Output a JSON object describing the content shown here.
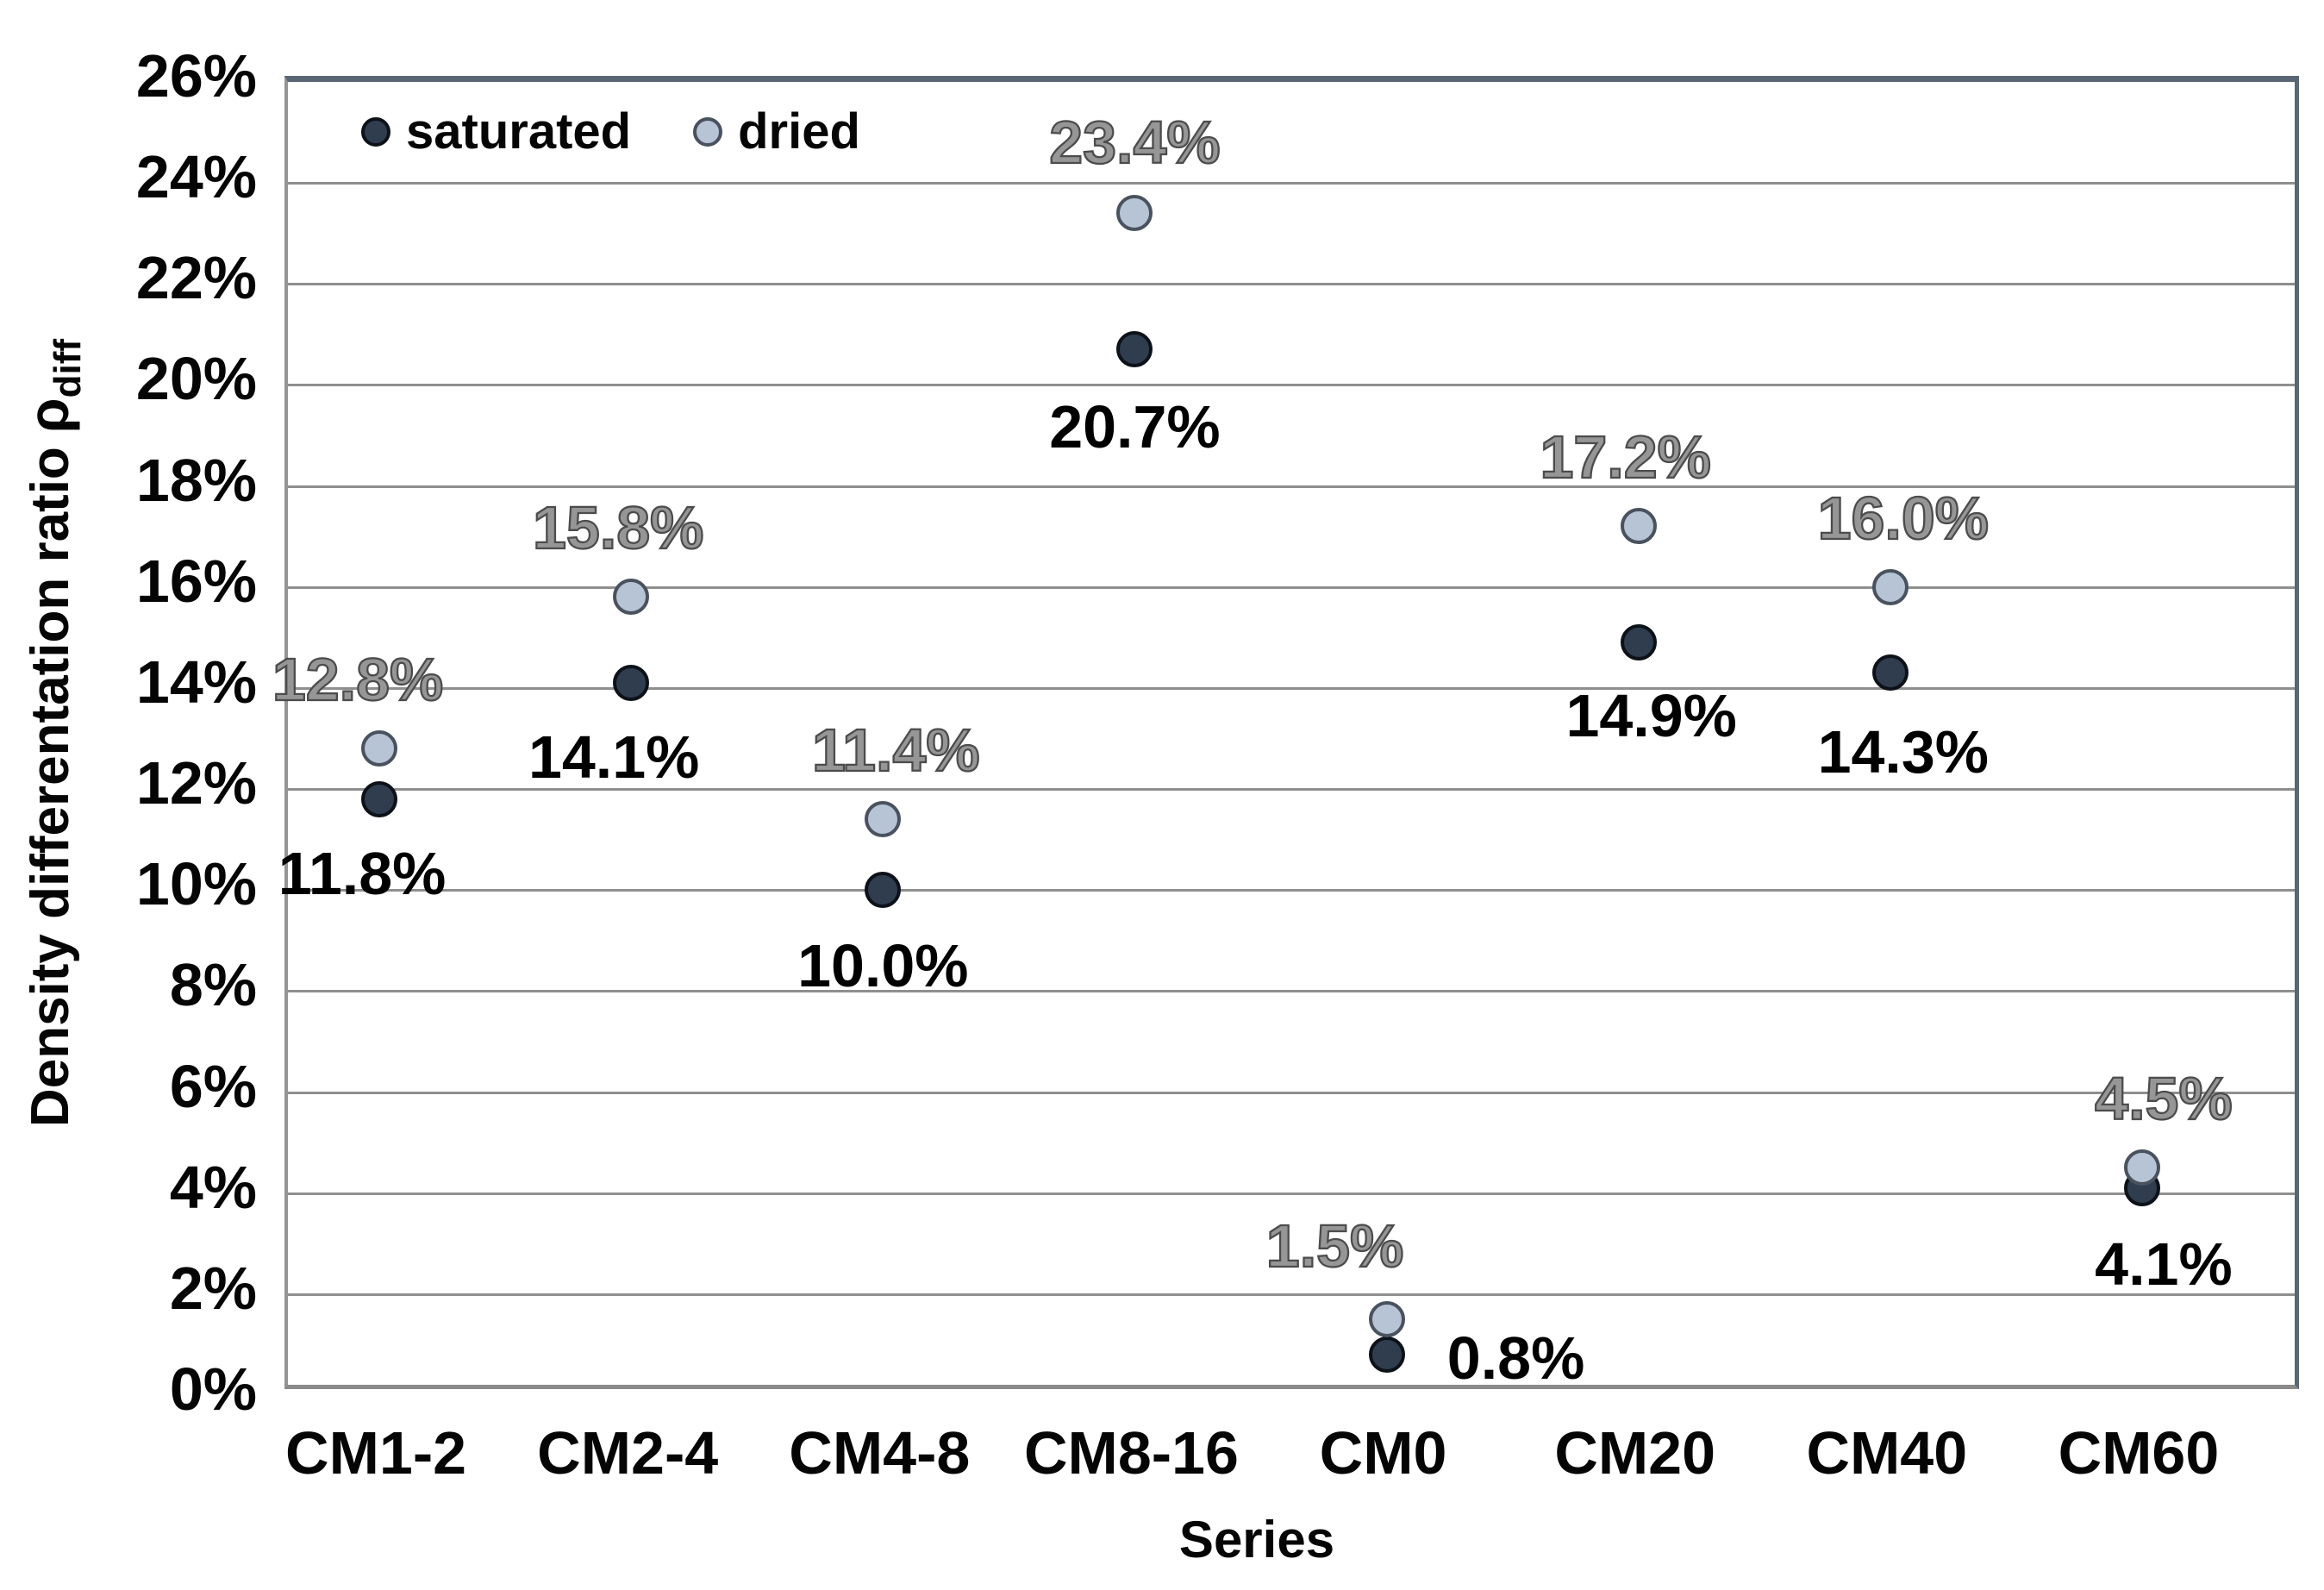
{
  "chart_data": {
    "type": "scatter",
    "title": "",
    "xlabel": "Series",
    "ylabel": {
      "text": "Density differentation ratio",
      "symbol": "ρ",
      "subscript": "diff"
    },
    "categories": [
      "CM1-2",
      "CM2-4",
      "CM4-8",
      "CM8-16",
      "CM0",
      "CM20",
      "CM40",
      "CM60"
    ],
    "ylim": [
      0,
      26
    ],
    "ytick_step": 2,
    "ytick_values": [
      26,
      24,
      22,
      20,
      18,
      16,
      14,
      12,
      10,
      8,
      6,
      4,
      2,
      0
    ],
    "yticks": [
      "26%",
      "24%",
      "22%",
      "20%",
      "18%",
      "16%",
      "14%",
      "12%",
      "10%",
      "8%",
      "6%",
      "4%",
      "2%",
      "0%"
    ],
    "grid": true,
    "legend_position": "top-inside",
    "gridline_color": "#8f8f8f",
    "series": [
      {
        "name": "saturated",
        "marker_fill": "#2f3d4f",
        "marker_stroke": "#0d1219",
        "label_color": "#000000",
        "values": [
          11.8,
          14.1,
          10.0,
          20.7,
          0.8,
          14.9,
          14.3,
          4.1
        ],
        "labels": [
          "11.8%",
          "14.1%",
          "10.0%",
          "20.7%",
          "0.8%",
          "14.9%",
          "14.3%",
          "4.1%"
        ],
        "label_offsets": [
          {
            "dx": -20,
            "dy": 86
          },
          {
            "dx": -20,
            "dy": 86
          },
          {
            "dx": 0,
            "dy": 88
          },
          {
            "dx": 0,
            "dy": 90
          },
          {
            "dx": 150,
            "dy": 4
          },
          {
            "dx": 15,
            "dy": 85
          },
          {
            "dx": 15,
            "dy": 92
          },
          {
            "dx": 25,
            "dy": 88
          }
        ]
      },
      {
        "name": "dried",
        "marker_fill": "#b6c4d5",
        "marker_stroke": "#49525e",
        "label_color": "#969696",
        "values": [
          12.8,
          15.8,
          11.4,
          23.4,
          1.5,
          17.2,
          16.0,
          4.5
        ],
        "labels": [
          "12.8%",
          "15.8%",
          "11.4%",
          "23.4%",
          "1.5%",
          "17.2%",
          "16.0%",
          "4.5%"
        ],
        "label_offsets": [
          {
            "dx": -25,
            "dy": -80
          },
          {
            "dx": -15,
            "dy": -80
          },
          {
            "dx": 15,
            "dy": -80
          },
          {
            "dx": 0,
            "dy": -82
          },
          {
            "dx": -60,
            "dy": -85
          },
          {
            "dx": -15,
            "dy": -80
          },
          {
            "dx": 15,
            "dy": -80
          },
          {
            "dx": 25,
            "dy": -80
          }
        ]
      }
    ]
  }
}
